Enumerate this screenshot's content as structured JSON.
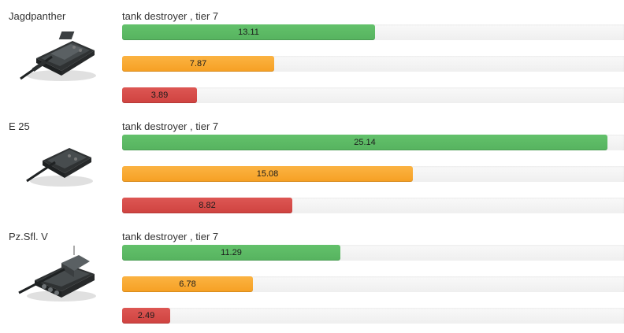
{
  "scale_max": 26.0,
  "tanks": [
    {
      "name": "Jagdpanther",
      "type": "tank destroyer , tier 7",
      "icon": "jagdpanther-tank-icon",
      "bars": [
        {
          "label": "13.11",
          "value": 13.11,
          "color": "#5cb85c"
        },
        {
          "label": "7.87",
          "value": 7.87,
          "color": "#f0ad4e"
        },
        {
          "label": "3.89",
          "value": 3.89,
          "color": "#d9534f"
        }
      ]
    },
    {
      "name": "E 25",
      "type": "tank destroyer , tier 7",
      "icon": "e25-tank-icon",
      "bars": [
        {
          "label": "25.14",
          "value": 25.14,
          "color": "#5cb85c"
        },
        {
          "label": "15.08",
          "value": 15.08,
          "color": "#f0ad4e"
        },
        {
          "label": "8.82",
          "value": 8.82,
          "color": "#d9534f"
        }
      ]
    },
    {
      "name": "Pz.Sfl. V",
      "type": "tank destroyer , tier 7",
      "icon": "pzsfl-v-tank-icon",
      "bars": [
        {
          "label": "11.29",
          "value": 11.29,
          "color": "#5cb85c"
        },
        {
          "label": "6.78",
          "value": 6.78,
          "color": "#f0ad4e"
        },
        {
          "label": "2.49",
          "value": 2.49,
          "color": "#d9534f"
        }
      ]
    }
  ]
}
